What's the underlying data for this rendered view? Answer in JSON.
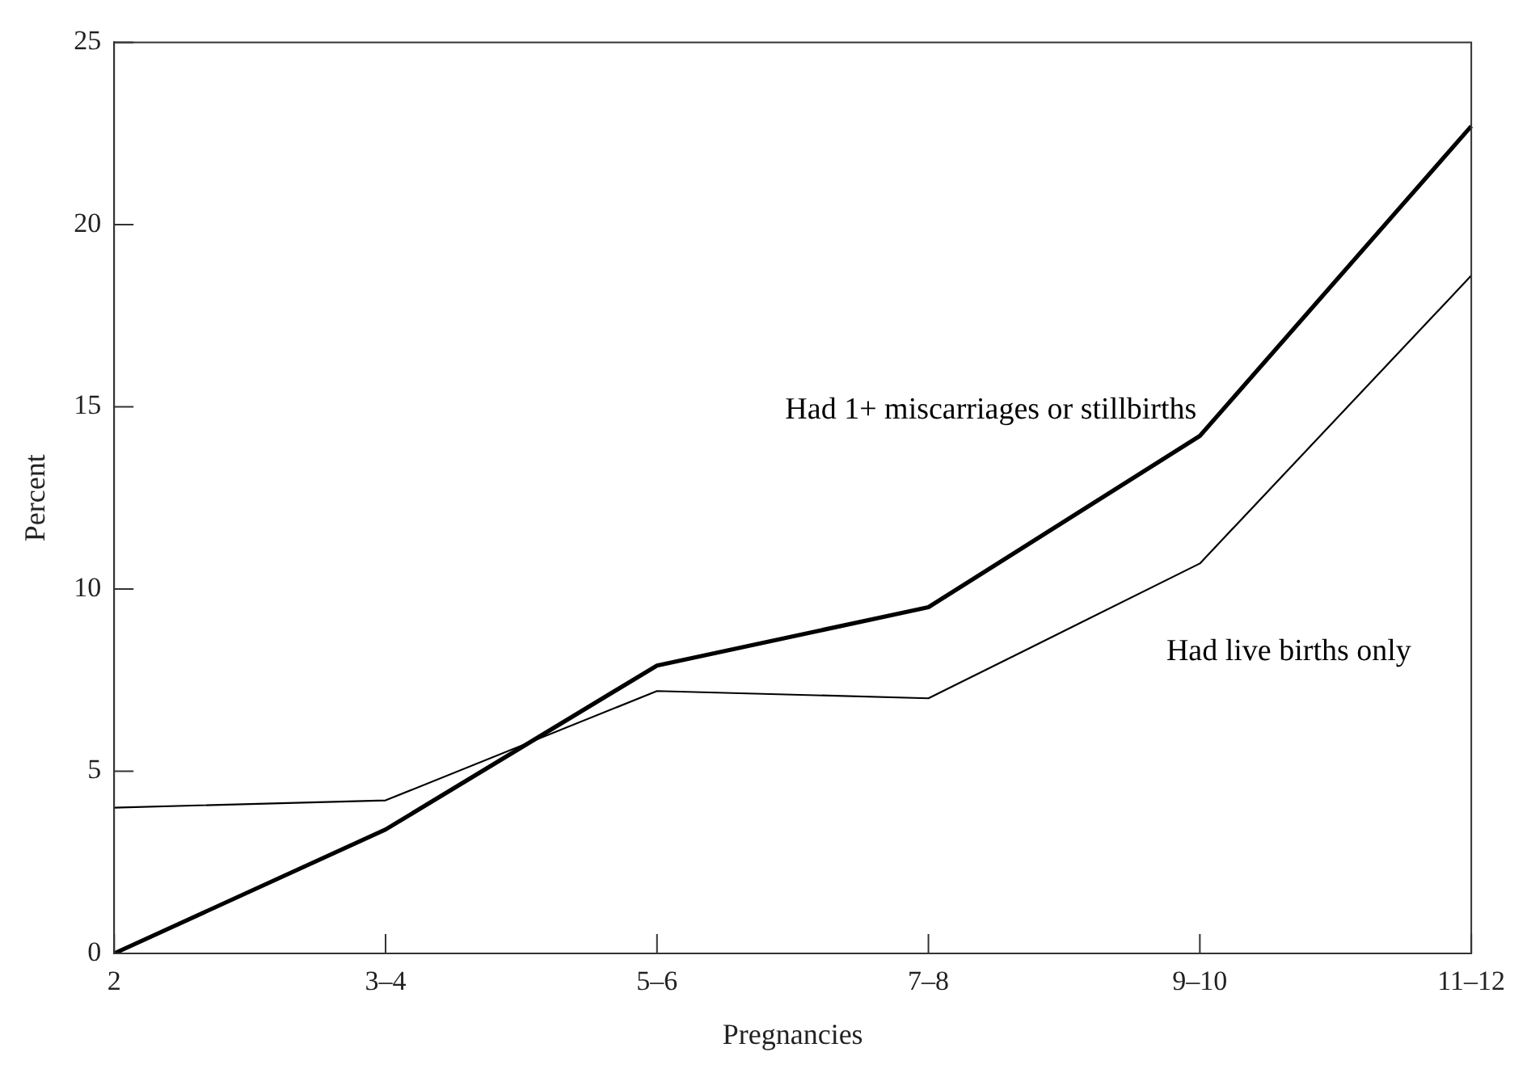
{
  "chart_data": {
    "type": "line",
    "xlabel": "Pregnancies",
    "ylabel": "Percent",
    "categories": [
      "2",
      "3–4",
      "5–6",
      "7–8",
      "9–10",
      "11–12"
    ],
    "series": [
      {
        "name": "Had 1+ miscarriages or stillbirths",
        "color": "#000000",
        "values": [
          0,
          3.4,
          7.9,
          9.5,
          14.2,
          22.7
        ]
      },
      {
        "name": "Had live births only",
        "color": "#000000",
        "values": [
          4.0,
          4.2,
          7.2,
          7.0,
          10.7,
          18.6
        ]
      }
    ],
    "ylim": [
      0,
      25
    ],
    "yticks": [
      0,
      5,
      10,
      15,
      20,
      25
    ],
    "grid": false,
    "legend": false,
    "marker": "none",
    "line_style": "solid"
  }
}
